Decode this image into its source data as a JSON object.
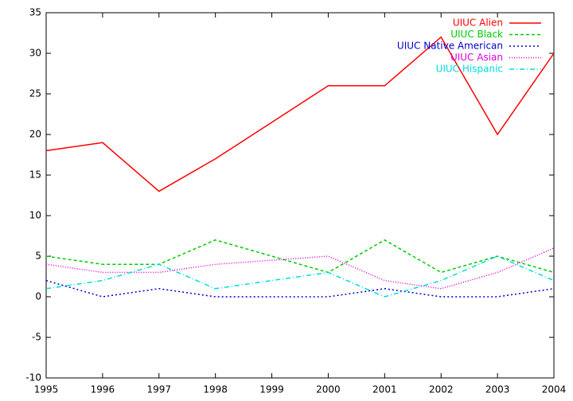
{
  "chart_data": {
    "type": "line",
    "x": [
      1995,
      1996,
      1997,
      1998,
      1999,
      2000,
      2001,
      2002,
      2003,
      2004
    ],
    "series": [
      {
        "name": "UIUC Alien",
        "color": "#ff0000",
        "values": [
          18,
          19,
          13,
          17,
          21.5,
          26,
          26,
          32,
          20,
          30
        ]
      },
      {
        "name": "UIUC Black",
        "color": "#00cc00",
        "values": [
          5,
          4,
          4,
          7,
          5,
          3,
          7,
          3,
          5,
          3
        ]
      },
      {
        "name": "UIUC Native American",
        "color": "#0000cc",
        "values": [
          2,
          0,
          1,
          0,
          0,
          0,
          1,
          0,
          0,
          1
        ]
      },
      {
        "name": "UIUC Asian",
        "color": "#dd00dd",
        "values": [
          4,
          3,
          3,
          4,
          4.5,
          5,
          2,
          1,
          3,
          6
        ]
      },
      {
        "name": "UIUC Hispanic",
        "color": "#00dddd",
        "values": [
          1,
          2,
          4,
          1,
          2,
          3,
          0,
          2,
          5,
          2
        ]
      }
    ],
    "xlim": [
      1995,
      2004
    ],
    "xticks": [
      1995,
      1996,
      1997,
      1998,
      1999,
      2000,
      2001,
      2002,
      2003,
      2004
    ],
    "ylim": [
      -10,
      35
    ],
    "yticks": [
      -10,
      -5,
      0,
      5,
      10,
      15,
      20,
      25,
      30,
      35
    ],
    "legend": "top-right",
    "grid": false
  }
}
